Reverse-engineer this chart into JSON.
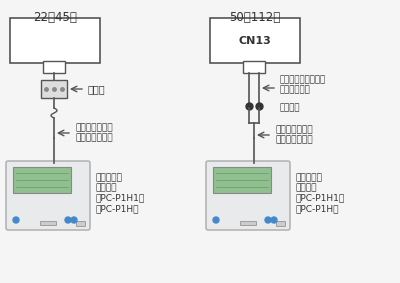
{
  "bg_color": "#f5f5f5",
  "line_color": "#555555",
  "box_color": "#cccccc",
  "text_color": "#333333",
  "title_left": "22～45型",
  "title_right": "50～112型",
  "label_cn13": "CN13",
  "label_terminal": "端子台",
  "label_connector": "コネクタ付きコード\n（製品付属）",
  "label_crimp": "圧着接続",
  "label_remote_left": "リモコンコード\n（現地準備品）",
  "label_remote_right": "リモコンコード\n（現地準備品）",
  "label_amenity_left": "アメニティ\nリモコン\n（PC-P1H1、\n　PC-P1H）",
  "label_amenity_right": "アメニティ\nリモコン\n（PC-P1H1、\n　PC-P1H）",
  "green_color": "#90c090",
  "remote_body_color": "#e8eaec",
  "remote_border_color": "#aaaaaa",
  "blue_button_color": "#4488cc",
  "dot_color": "#333333"
}
